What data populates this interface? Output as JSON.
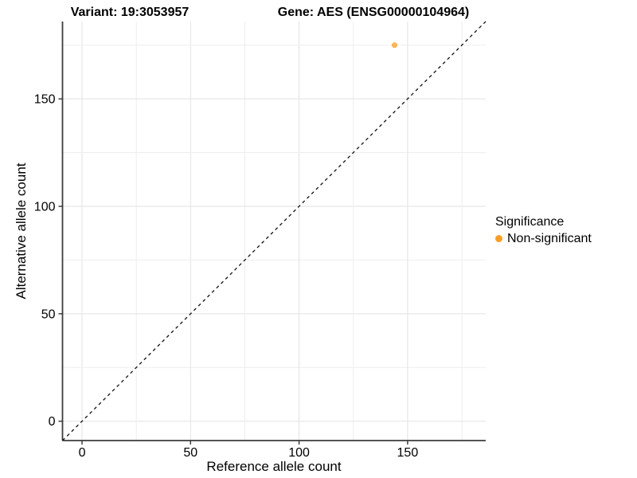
{
  "chart_data": {
    "type": "scatter",
    "title_left": "Variant: 19:3053957",
    "title_right": "Gene: AES (ENSG00000104964)",
    "xlabel": "Reference allele count",
    "ylabel": "Alternative allele count",
    "xlim": [
      -9,
      186
    ],
    "ylim": [
      -9,
      186
    ],
    "x_ticks": [
      0,
      50,
      100,
      150
    ],
    "y_ticks": [
      0,
      50,
      100,
      150
    ],
    "minor_grid_step": 25,
    "grid": true,
    "points": [
      {
        "x": 144,
        "y": 175,
        "series": "Non-significant"
      }
    ],
    "reference_line": {
      "type": "identity",
      "style": "dashed",
      "label": "y = x"
    },
    "legend": {
      "title": "Significance",
      "position": "right",
      "items": [
        {
          "label": "Non-significant",
          "color": "#FA9E26"
        }
      ]
    },
    "colors": {
      "point": "#FA9E26",
      "point_opacity": 0.75,
      "axis_line": "#3c3c3c",
      "grid_major": "#e2e2e2",
      "grid_minor": "#eeeeee",
      "dashed_line": "#111111",
      "text": "#000000"
    }
  }
}
